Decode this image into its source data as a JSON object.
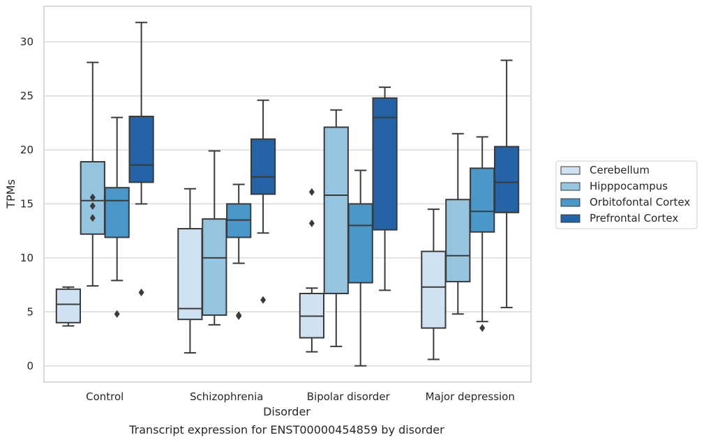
{
  "chart_data": {
    "type": "box",
    "caption": "Transcript expression for ENST00000454859 by disorder",
    "xlabel": "Disorder",
    "ylabel": "TPMs",
    "ylim": [
      -1.5,
      33.3
    ],
    "yticks": [
      0,
      5,
      10,
      15,
      20,
      25,
      30
    ],
    "ytick_labels": [
      "0",
      "5",
      "10",
      "15",
      "20",
      "25",
      "30"
    ],
    "grid": "horizontal",
    "legend_position": "right",
    "categories": [
      "Control",
      "Schizophrenia",
      "Bipolar disorder",
      "Major depression"
    ],
    "series": [
      {
        "name": "Cerebellum",
        "color": "#d0e1f2",
        "boxes": [
          {
            "whislo": 3.7,
            "q1": 4.0,
            "med": 5.7,
            "q3": 7.1,
            "whishi": 7.3,
            "fliers": []
          },
          {
            "whislo": 1.2,
            "q1": 4.3,
            "med": 5.3,
            "q3": 12.7,
            "whishi": 16.4,
            "fliers": []
          },
          {
            "whislo": 1.3,
            "q1": 2.6,
            "med": 4.6,
            "q3": 6.7,
            "whishi": 7.2,
            "fliers": [
              13.2,
              16.1
            ]
          },
          {
            "whislo": 0.6,
            "q1": 3.5,
            "med": 7.3,
            "q3": 10.6,
            "whishi": 14.5,
            "fliers": []
          }
        ]
      },
      {
        "name": "Hipppocampus",
        "color": "#94c4df",
        "boxes": [
          {
            "whislo": 7.4,
            "q1": 12.2,
            "med": 15.3,
            "q3": 18.9,
            "whishi": 28.1,
            "fliers": [
              13.7,
              14.8,
              15.6
            ]
          },
          {
            "whislo": 3.8,
            "q1": 4.7,
            "med": 10.0,
            "q3": 13.6,
            "whishi": 19.9,
            "fliers": []
          },
          {
            "whislo": 1.8,
            "q1": 6.7,
            "med": 15.8,
            "q3": 22.1,
            "whishi": 23.7,
            "fliers": []
          },
          {
            "whislo": 4.8,
            "q1": 7.8,
            "med": 10.2,
            "q3": 15.4,
            "whishi": 21.5,
            "fliers": []
          }
        ]
      },
      {
        "name": "Orbitofontal Cortex",
        "color": "#4a98c9",
        "boxes": [
          {
            "whislo": 7.9,
            "q1": 11.9,
            "med": 15.3,
            "q3": 16.5,
            "whishi": 23.0,
            "fliers": [
              4.8
            ]
          },
          {
            "whislo": 9.5,
            "q1": 11.9,
            "med": 13.5,
            "q3": 15.0,
            "whishi": 16.8,
            "fliers": [
              4.6,
              4.7
            ]
          },
          {
            "whislo": 0.0,
            "q1": 7.7,
            "med": 13.0,
            "q3": 15.0,
            "whishi": 18.1,
            "fliers": []
          },
          {
            "whislo": 4.1,
            "q1": 12.4,
            "med": 14.3,
            "q3": 18.3,
            "whishi": 21.2,
            "fliers": [
              3.5
            ]
          }
        ]
      },
      {
        "name": "Prefrontal Cortex",
        "color": "#2363a6",
        "boxes": [
          {
            "whislo": 15.0,
            "q1": 17.0,
            "med": 18.6,
            "q3": 23.1,
            "whishi": 31.8,
            "fliers": [
              6.8
            ]
          },
          {
            "whislo": 12.3,
            "q1": 15.9,
            "med": 17.5,
            "q3": 21.0,
            "whishi": 24.6,
            "fliers": [
              6.1
            ]
          },
          {
            "whislo": 7.0,
            "q1": 12.6,
            "med": 23.0,
            "q3": 24.8,
            "whishi": 25.8,
            "fliers": []
          },
          {
            "whislo": 5.4,
            "q1": 14.2,
            "med": 17.0,
            "q3": 20.3,
            "whishi": 28.3,
            "fliers": []
          }
        ]
      }
    ]
  }
}
